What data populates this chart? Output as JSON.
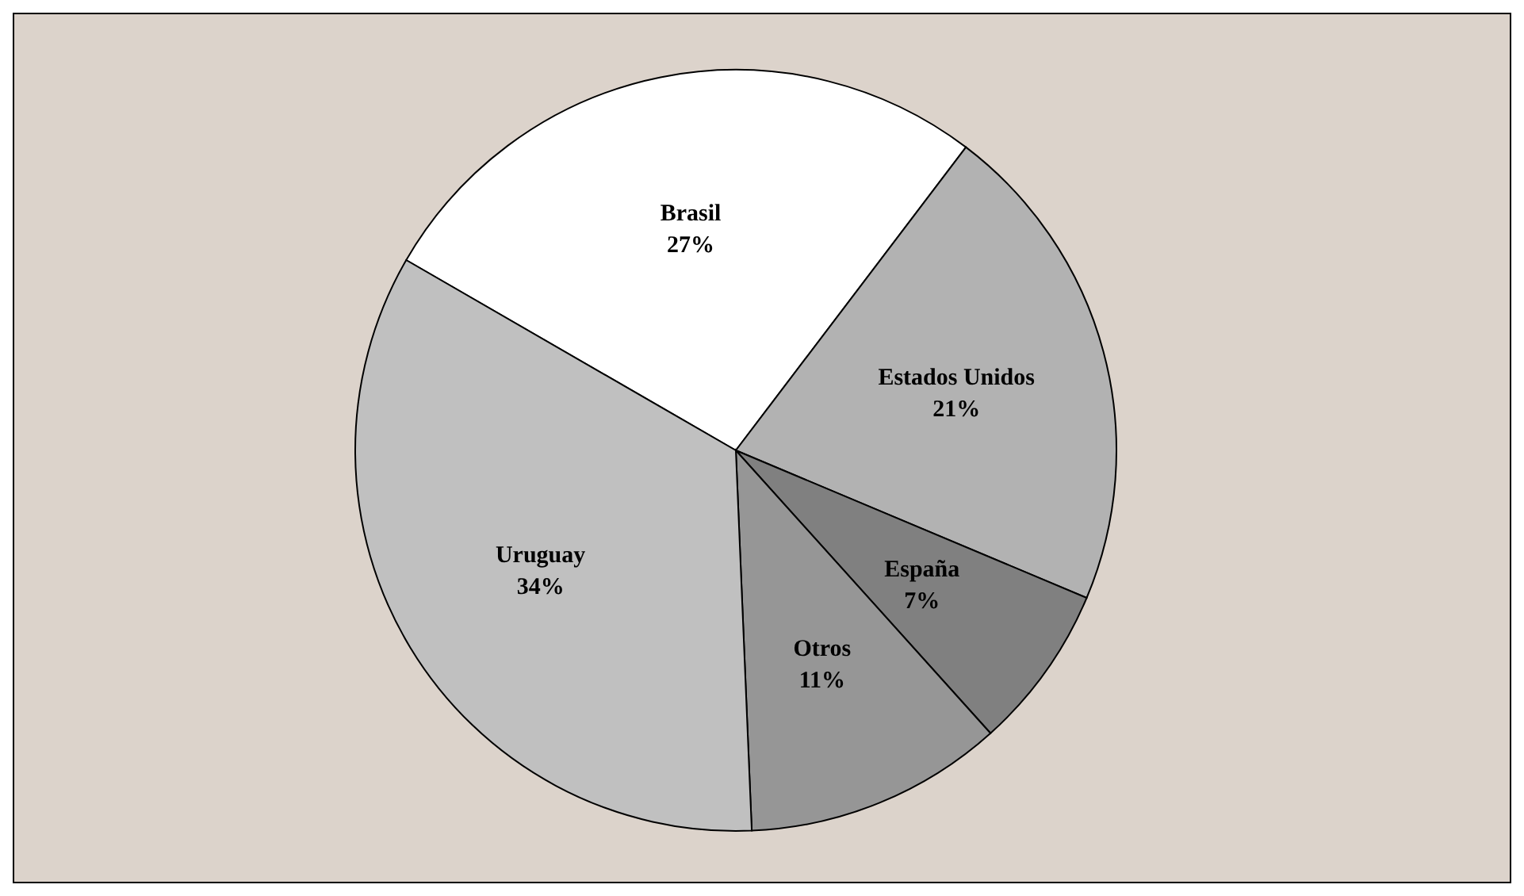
{
  "chart_data": {
    "type": "pie",
    "categories": [
      "Brasil",
      "Estados Unidos",
      "España",
      "Otros",
      "Uruguay"
    ],
    "values": [
      27,
      21,
      7,
      11,
      34
    ],
    "value_labels": [
      "27%",
      "21%",
      "7%",
      "11%",
      "34%"
    ],
    "colors": [
      "#ffffff",
      "#b2b2b2",
      "#808080",
      "#969696",
      "#c0c0c0"
    ],
    "legend": false
  }
}
